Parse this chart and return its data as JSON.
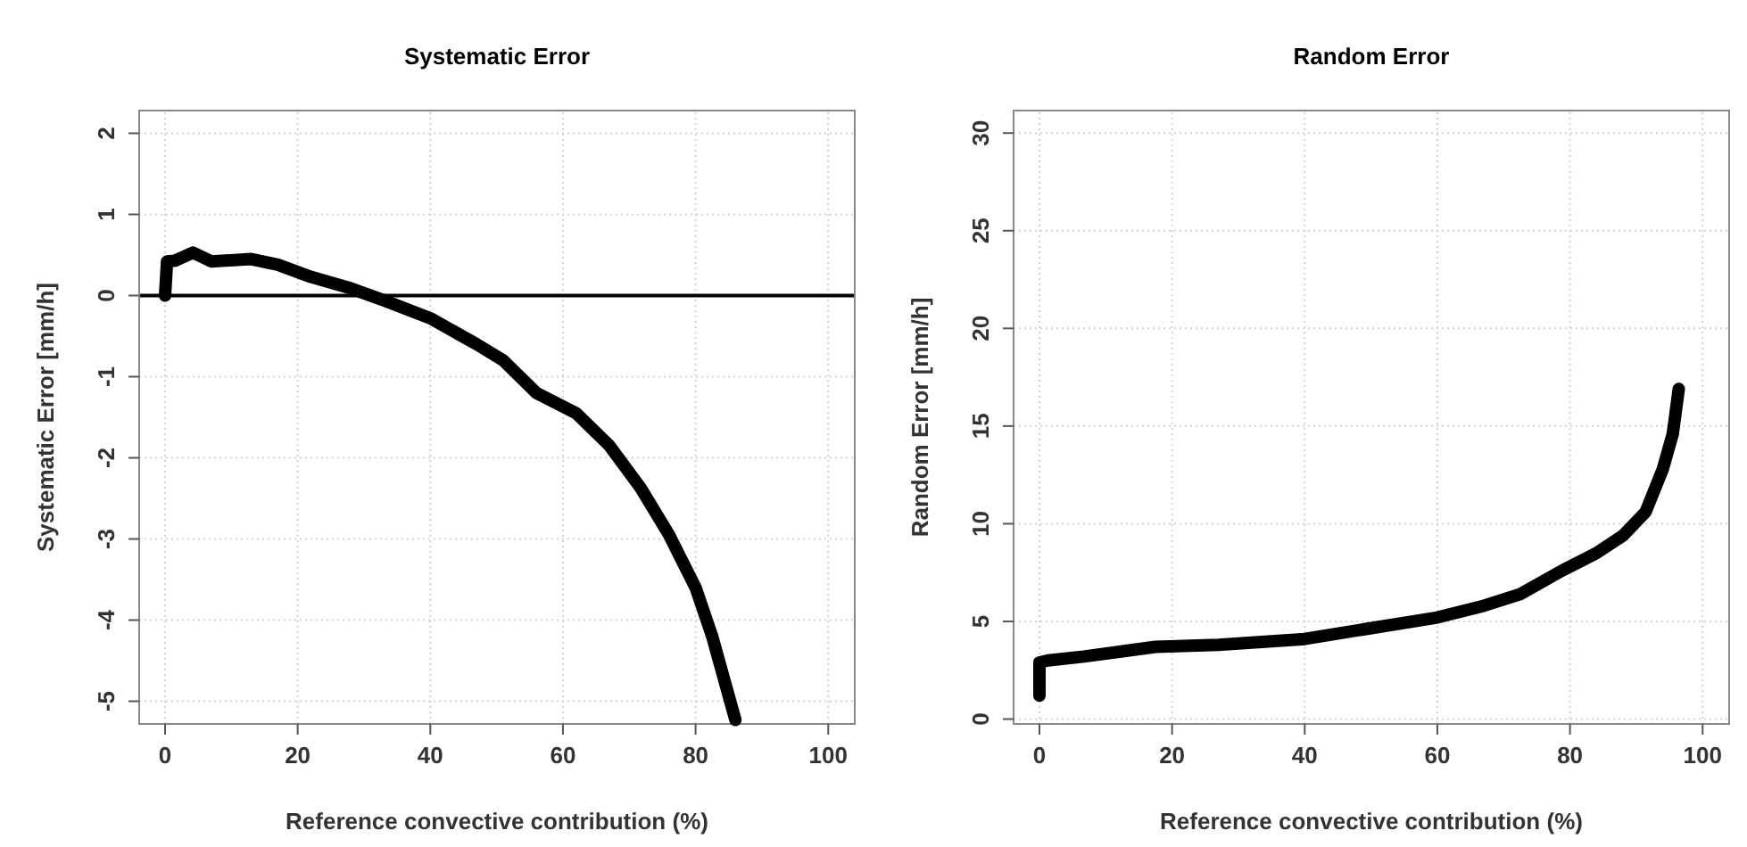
{
  "chart_data": [
    {
      "type": "line",
      "title": "Systematic Error",
      "xlabel": "Reference convective contribution (%)",
      "ylabel": "Systematic Error [mm/h]",
      "xlim": [
        -3.9,
        104
      ],
      "ylim": [
        -5.28,
        2.28
      ],
      "xticks": [
        0,
        20,
        40,
        60,
        80,
        100
      ],
      "yticks": [
        -5,
        -4,
        -3,
        -2,
        -1,
        0,
        1,
        2
      ],
      "grid": true,
      "ref_lines": [
        {
          "axis": "y",
          "value": 0,
          "color": "#000000"
        }
      ],
      "series": [
        {
          "color": "#000000",
          "x": [
            0,
            0.3,
            1.5,
            4.2,
            7,
            13,
            17,
            22,
            27.6,
            33,
            40,
            47,
            51,
            56,
            62,
            67,
            71.7,
            76,
            80,
            82.5,
            86
          ],
          "values": [
            0,
            0.42,
            0.43,
            0.53,
            0.42,
            0.45,
            0.38,
            0.23,
            0.1,
            -0.06,
            -0.28,
            -0.6,
            -0.8,
            -1.2,
            -1.45,
            -1.85,
            -2.37,
            -2.95,
            -3.6,
            -4.2,
            -5.23
          ]
        }
      ]
    },
    {
      "type": "line",
      "title": "Random Error",
      "xlabel": "Reference convective contribution (%)",
      "ylabel": "Random Error [mm/h]",
      "xlim": [
        -3.9,
        104
      ],
      "ylim": [
        -0.25,
        31.15
      ],
      "xticks": [
        0,
        20,
        40,
        60,
        80,
        100
      ],
      "yticks": [
        0,
        5,
        10,
        15,
        20,
        25,
        30
      ],
      "grid": true,
      "series": [
        {
          "color": "#000000",
          "x": [
            0,
            0,
            1.3,
            6.7,
            17.5,
            27,
            40,
            49,
            60,
            67,
            72.5,
            78.8,
            84,
            88,
            91.4,
            94,
            95.5,
            96.4
          ],
          "values": [
            1.2,
            2.9,
            3,
            3.2,
            3.7,
            3.8,
            4.1,
            4.6,
            5.2,
            5.8,
            6.4,
            7.6,
            8.5,
            9.4,
            10.6,
            12.8,
            14.6,
            16.9
          ]
        }
      ]
    }
  ]
}
